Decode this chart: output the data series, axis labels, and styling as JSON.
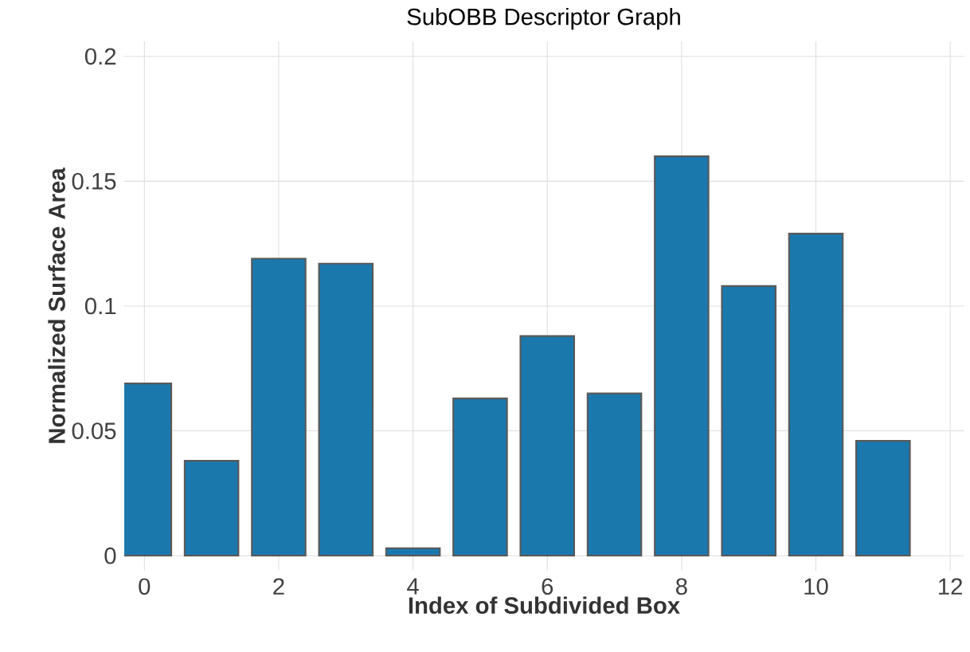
{
  "chart_data": {
    "type": "bar",
    "title": "SubOBB Descriptor Graph",
    "xlabel": "Index of Subdivided Box",
    "ylabel": "Normalized Surface Area",
    "x": [
      0,
      1,
      2,
      3,
      4,
      5,
      6,
      7,
      8,
      9,
      10,
      11
    ],
    "values": [
      0.069,
      0.038,
      0.119,
      0.117,
      0.003,
      0.063,
      0.088,
      0.065,
      0.16,
      0.108,
      0.129,
      0.046
    ],
    "color": "#1b78ad",
    "xlim": [
      -0.3,
      12.2
    ],
    "ylim": [
      -0.006,
      0.206
    ],
    "xticks": [
      0,
      2,
      4,
      6,
      8,
      10,
      12
    ],
    "yticks": [
      0,
      0.05,
      0.1,
      0.15,
      0.2
    ],
    "grid": true
  }
}
